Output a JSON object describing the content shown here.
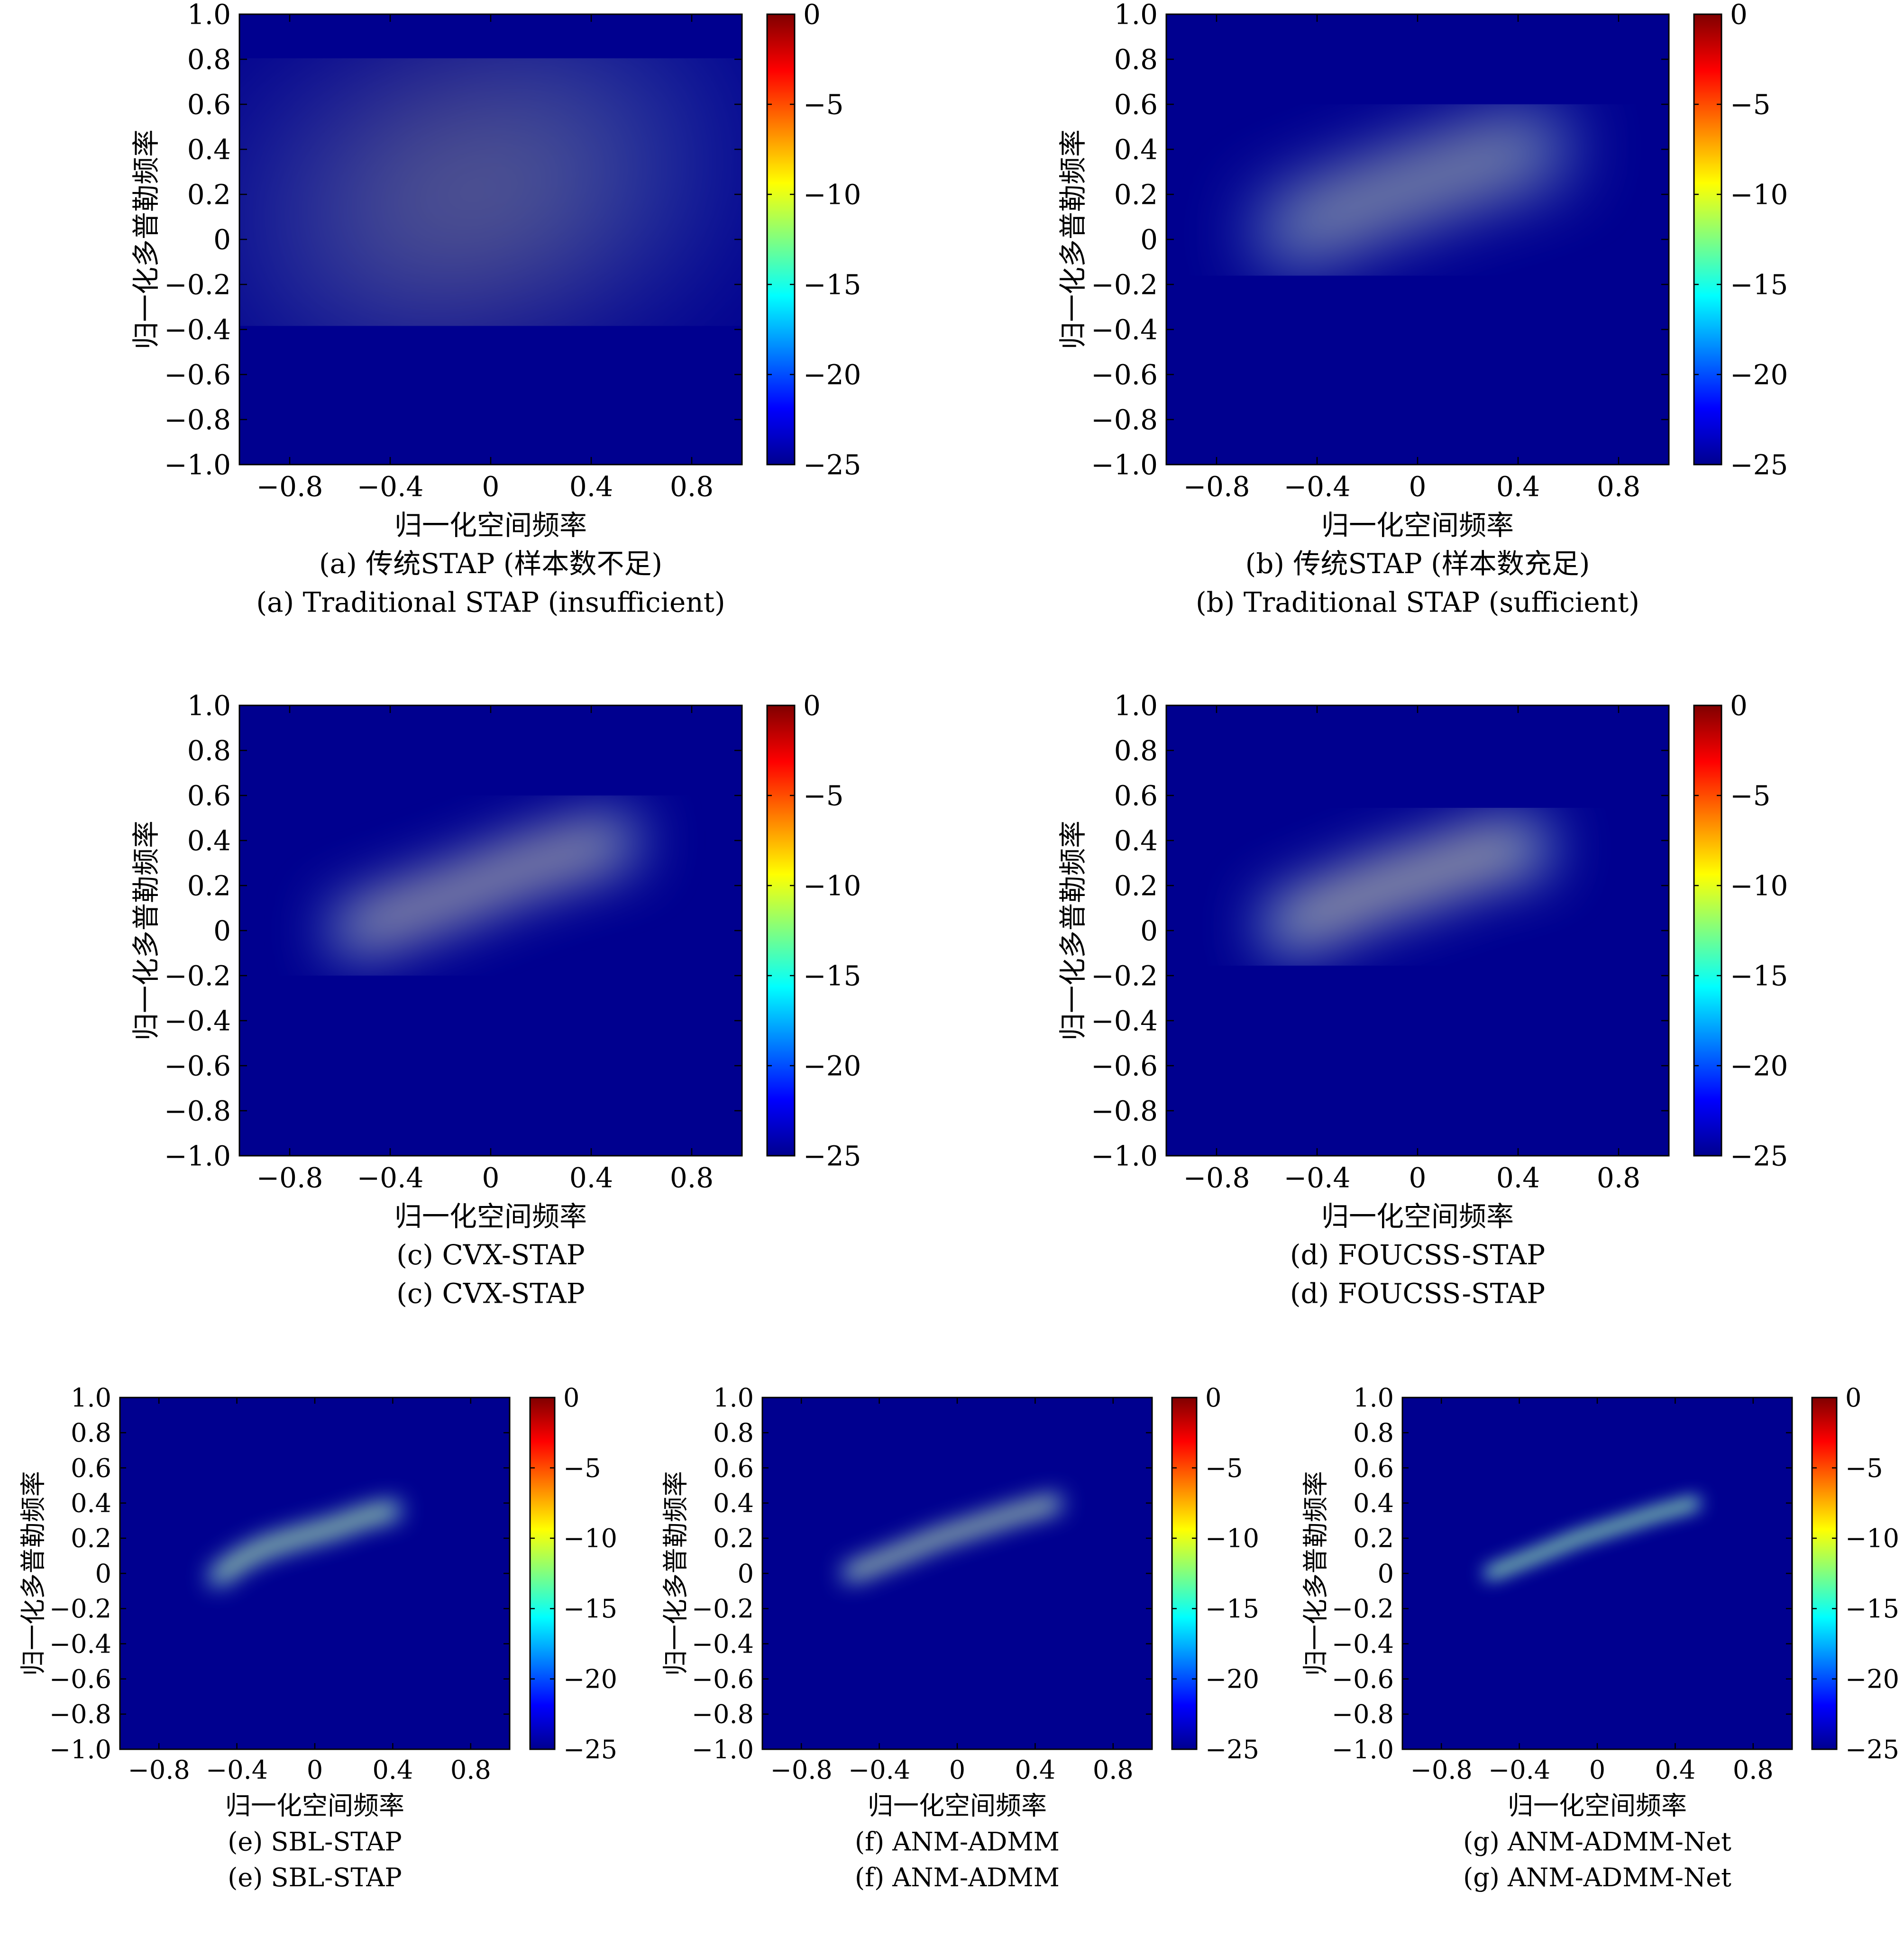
{
  "figure": {
    "colormap": [
      "#00008f",
      "#0000ff",
      "#0080ff",
      "#00ffff",
      "#80ff80",
      "#ffff00",
      "#ff8000",
      "#ff0000",
      "#800000"
    ],
    "background_color": "#00008f"
  },
  "chart_data": [
    {
      "id": "a",
      "type": "heatmap",
      "caption_cn": "(a) 传统STAP (样本数不足)",
      "caption_en": "(a) Traditional STAP (insufficient)",
      "xlabel": "归一化空间频率",
      "ylabel": "归一化多普勒频率",
      "xlim": [
        -1,
        1
      ],
      "ylim": [
        -1,
        1
      ],
      "xticks": [
        -0.8,
        -0.4,
        0,
        0.4,
        0.8
      ],
      "xtick_labels": [
        "−0.8",
        "−0.4",
        "0",
        "0.4",
        "0.8"
      ],
      "yticks": [
        1.0,
        0.8,
        0.6,
        0.4,
        0.2,
        0,
        -0.2,
        -0.4,
        -0.6,
        -0.8,
        -1.0
      ],
      "ytick_labels": [
        "1.0",
        "0.8",
        "0.6",
        "0.4",
        "0.2",
        "0",
        "−0.2",
        "−0.4",
        "−0.6",
        "−0.8",
        "−1.0"
      ],
      "colorbar": {
        "range": [
          -25,
          0
        ],
        "ticks": [
          0,
          -5,
          -10,
          -15,
          -20,
          -25
        ],
        "tick_labels": [
          "0",
          "−5",
          "−10",
          "−15",
          "−20",
          "−25"
        ]
      },
      "ridge": {
        "x": [
          -0.58,
          -0.3,
          -0.1,
          0.1,
          0.3,
          0.48
        ],
        "y": [
          0.06,
          0.13,
          0.2,
          0.28,
          0.33,
          0.38
        ],
        "width": 0.09,
        "level": 0.55
      },
      "peaks": [
        {
          "x": -0.3,
          "y": 0.13,
          "level": 0.92
        },
        {
          "x": 0.09,
          "y": 0.29,
          "level": 1.0
        }
      ],
      "blur": 14
    },
    {
      "id": "b",
      "type": "heatmap",
      "caption_cn": "(b) 传统STAP (样本数充足)",
      "caption_en": "(b) Traditional STAP (sufficient)",
      "xlabel": "归一化空间频率",
      "ylabel": "归一化多普勒频率",
      "xlim": [
        -1,
        1
      ],
      "ylim": [
        -1,
        1
      ],
      "xticks": [
        -0.8,
        -0.4,
        0,
        0.4,
        0.8
      ],
      "xtick_labels": [
        "−0.8",
        "−0.4",
        "0",
        "0.4",
        "0.8"
      ],
      "yticks": [
        1.0,
        0.8,
        0.6,
        0.4,
        0.2,
        0,
        -0.2,
        -0.4,
        -0.6,
        -0.8,
        -1.0
      ],
      "ytick_labels": [
        "1.0",
        "0.8",
        "0.6",
        "0.4",
        "0.2",
        "0",
        "−0.2",
        "−0.4",
        "−0.6",
        "−0.8",
        "−1.0"
      ],
      "colorbar": {
        "range": [
          -25,
          0
        ],
        "ticks": [
          0,
          -5,
          -10,
          -15,
          -20,
          -25
        ],
        "tick_labels": [
          "0",
          "−5",
          "−10",
          "−15",
          "−20",
          "−25"
        ]
      },
      "ridge": {
        "x": [
          -0.52,
          -0.3,
          -0.1,
          0.1,
          0.3,
          0.48
        ],
        "y": [
          0.03,
          0.13,
          0.21,
          0.29,
          0.36,
          0.41
        ],
        "width": 0.045,
        "level": 0.95
      },
      "peaks": [],
      "blur": 5
    },
    {
      "id": "c",
      "type": "heatmap",
      "caption_cn": "(c) CVX-STAP",
      "caption_en": "(c) CVX-STAP",
      "xlabel": "归一化空间频率",
      "ylabel": "归一化多普勒频率",
      "xlim": [
        -1,
        1
      ],
      "ylim": [
        -1,
        1
      ],
      "xticks": [
        -0.8,
        -0.4,
        0,
        0.4,
        0.8
      ],
      "xtick_labels": [
        "−0.8",
        "−0.4",
        "0",
        "0.4",
        "0.8"
      ],
      "yticks": [
        1.0,
        0.8,
        0.6,
        0.4,
        0.2,
        0,
        -0.2,
        -0.4,
        -0.6,
        -0.8,
        -1.0
      ],
      "ytick_labels": [
        "1.0",
        "0.8",
        "0.6",
        "0.4",
        "0.2",
        "0",
        "−0.2",
        "−0.4",
        "−0.6",
        "−0.8",
        "−1.0"
      ],
      "colorbar": {
        "range": [
          -25,
          0
        ],
        "ticks": [
          0,
          -5,
          -10,
          -15,
          -20,
          -25
        ],
        "tick_labels": [
          "0",
          "−5",
          "−10",
          "−15",
          "−20",
          "−25"
        ]
      },
      "ridge": {
        "x": [
          -0.55,
          -0.3,
          -0.1,
          0.1,
          0.3,
          0.5
        ],
        "y": [
          0.0,
          0.1,
          0.18,
          0.27,
          0.34,
          0.4
        ],
        "width": 0.035,
        "level": 0.85
      },
      "peaks": [],
      "blur": 4
    },
    {
      "id": "d",
      "type": "heatmap",
      "caption_cn": "(d) FOUCSS-STAP",
      "caption_en": "(d) FOUCSS-STAP",
      "xlabel": "归一化空间频率",
      "ylabel": "归一化多普勒频率",
      "xlim": [
        -1,
        1
      ],
      "ylim": [
        -1,
        1
      ],
      "xticks": [
        -0.8,
        -0.4,
        0,
        0.4,
        0.8
      ],
      "xtick_labels": [
        "−0.8",
        "−0.4",
        "0",
        "0.4",
        "0.8"
      ],
      "yticks": [
        1.0,
        0.8,
        0.6,
        0.4,
        0.2,
        0,
        -0.2,
        -0.4,
        -0.6,
        -0.8,
        -1.0
      ],
      "ytick_labels": [
        "1.0",
        "0.8",
        "0.6",
        "0.4",
        "0.2",
        "0",
        "−0.2",
        "−0.4",
        "−0.6",
        "−0.8",
        "−1.0"
      ],
      "colorbar": {
        "range": [
          -25,
          0
        ],
        "ticks": [
          0,
          -5,
          -10,
          -15,
          -20,
          -25
        ],
        "tick_labels": [
          "0",
          "−5",
          "−10",
          "−15",
          "−20",
          "−25"
        ]
      },
      "ridge": {
        "x": [
          -0.52,
          -0.3,
          -0.1,
          0.05,
          0.15,
          0.3,
          0.43
        ],
        "y": [
          0.02,
          0.12,
          0.21,
          0.25,
          0.3,
          0.35,
          0.37
        ],
        "width": 0.04,
        "level": 0.9
      },
      "peaks": [],
      "blur": 4
    },
    {
      "id": "e",
      "type": "heatmap",
      "caption_cn": "(e) SBL-STAP",
      "caption_en": "(e) SBL-STAP",
      "xlabel": "归一化空间频率",
      "ylabel": "归一化多普勒频率",
      "xlim": [
        -1,
        1
      ],
      "ylim": [
        -1,
        1
      ],
      "xticks": [
        -0.8,
        -0.4,
        0,
        0.4,
        0.8
      ],
      "xtick_labels": [
        "−0.8",
        "−0.4",
        "0",
        "0.4",
        "0.8"
      ],
      "yticks": [
        1.0,
        0.8,
        0.6,
        0.4,
        0.2,
        0,
        -0.2,
        -0.4,
        -0.6,
        -0.8,
        -1.0
      ],
      "ytick_labels": [
        "1.0",
        "0.8",
        "0.6",
        "0.4",
        "0.2",
        "0",
        "−0.2",
        "−0.4",
        "−0.6",
        "−0.8",
        "−1.0"
      ],
      "colorbar": {
        "range": [
          -25,
          0
        ],
        "ticks": [
          0,
          -5,
          -10,
          -15,
          -20,
          -25
        ],
        "tick_labels": [
          "0",
          "−5",
          "−10",
          "−15",
          "−20",
          "−25"
        ]
      },
      "ridge": {
        "x": [
          -0.5,
          -0.38,
          -0.25,
          -0.1,
          0.1,
          0.25,
          0.4
        ],
        "y": [
          -0.02,
          0.08,
          0.15,
          0.2,
          0.26,
          0.32,
          0.36
        ],
        "width": 0.018,
        "level": 0.6
      },
      "peaks": [],
      "blur": 2
    },
    {
      "id": "f",
      "type": "heatmap",
      "caption_cn": "(f) ANM-ADMM",
      "caption_en": "(f) ANM-ADMM",
      "xlabel": "归一化空间频率",
      "ylabel": "归一化多普勒频率",
      "xlim": [
        -1,
        1
      ],
      "ylim": [
        -1,
        1
      ],
      "xticks": [
        -0.8,
        -0.4,
        0,
        0.4,
        0.8
      ],
      "xtick_labels": [
        "−0.8",
        "−0.4",
        "0",
        "0.4",
        "0.8"
      ],
      "yticks": [
        1.0,
        0.8,
        0.6,
        0.4,
        0.2,
        0,
        -0.2,
        -0.4,
        -0.6,
        -0.8,
        -1.0
      ],
      "ytick_labels": [
        "1.0",
        "0.8",
        "0.6",
        "0.4",
        "0.2",
        "0",
        "−0.2",
        "−0.4",
        "−0.6",
        "−0.8",
        "−1.0"
      ],
      "colorbar": {
        "range": [
          -25,
          0
        ],
        "ticks": [
          0,
          -5,
          -10,
          -15,
          -20,
          -25
        ],
        "tick_labels": [
          "0",
          "−5",
          "−10",
          "−15",
          "−20",
          "−25"
        ]
      },
      "ridge": {
        "x": [
          -0.55,
          -0.3,
          -0.1,
          0.1,
          0.3,
          0.5
        ],
        "y": [
          0.0,
          0.11,
          0.2,
          0.27,
          0.34,
          0.4
        ],
        "width": 0.016,
        "level": 0.65
      },
      "peaks": [],
      "blur": 2
    },
    {
      "id": "g",
      "type": "heatmap",
      "caption_cn": "(g) ANM-ADMM-Net",
      "caption_en": "(g) ANM-ADMM-Net",
      "xlabel": "归一化空间频率",
      "ylabel": "归一化多普勒频率",
      "xlim": [
        -1,
        1
      ],
      "ylim": [
        -1,
        1
      ],
      "xticks": [
        -0.8,
        -0.4,
        0,
        0.4,
        0.8
      ],
      "xtick_labels": [
        "−0.8",
        "−0.4",
        "0",
        "0.4",
        "0.8"
      ],
      "yticks": [
        1.0,
        0.8,
        0.6,
        0.4,
        0.2,
        0,
        -0.2,
        -0.4,
        -0.6,
        -0.8,
        -1.0
      ],
      "ytick_labels": [
        "1.0",
        "0.8",
        "0.6",
        "0.4",
        "0.2",
        "0",
        "−0.2",
        "−0.4",
        "−0.6",
        "−0.8",
        "−1.0"
      ],
      "colorbar": {
        "range": [
          -25,
          0
        ],
        "ticks": [
          0,
          -5,
          -10,
          -15,
          -20,
          -25
        ],
        "tick_labels": [
          "0",
          "−5",
          "−10",
          "−15",
          "−20",
          "−25"
        ]
      },
      "ridge": {
        "x": [
          -0.55,
          -0.3,
          -0.1,
          0.1,
          0.3,
          0.5
        ],
        "y": [
          0.0,
          0.11,
          0.2,
          0.27,
          0.34,
          0.4
        ],
        "width": 0.013,
        "level": 0.55
      },
      "peaks": [],
      "blur": 1.5
    }
  ]
}
